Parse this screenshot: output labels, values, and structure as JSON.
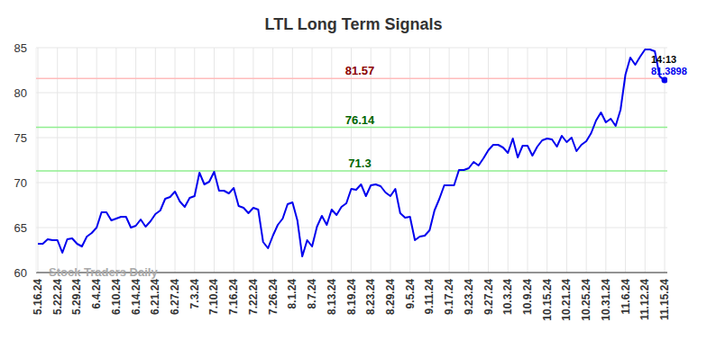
{
  "chart_data": {
    "type": "line",
    "title": "LTL Long Term Signals",
    "watermark": "Stock Traders Daily",
    "categories": [
      "5.16.24",
      null,
      null,
      null,
      "5.22.24",
      null,
      null,
      null,
      "5.29.24",
      null,
      null,
      null,
      "6.4.24",
      null,
      null,
      null,
      "6.10.24",
      null,
      null,
      null,
      "6.14.24",
      null,
      null,
      null,
      "6.21.24",
      null,
      null,
      null,
      "6.27.24",
      null,
      null,
      null,
      "7.3.24",
      null,
      null,
      null,
      "7.10.24",
      null,
      null,
      null,
      "7.16.24",
      null,
      null,
      null,
      "7.22.24",
      null,
      null,
      null,
      "7.26.24",
      null,
      null,
      null,
      "8.1.24",
      null,
      null,
      null,
      "8.7.24",
      null,
      null,
      null,
      "8.13.24",
      null,
      null,
      null,
      "8.19.24",
      null,
      null,
      null,
      "8.23.24",
      null,
      null,
      null,
      "8.29.24",
      null,
      null,
      null,
      "9.5.24",
      null,
      null,
      null,
      "9.11.24",
      null,
      null,
      null,
      "9.17.24",
      null,
      null,
      null,
      "9.23.24",
      null,
      null,
      null,
      "9.27.24",
      null,
      null,
      null,
      "10.3.24",
      null,
      null,
      null,
      "10.9.24",
      null,
      null,
      null,
      "10.15.24",
      null,
      null,
      null,
      "10.21.24",
      null,
      null,
      null,
      "10.25.24",
      null,
      null,
      null,
      "10.31.24",
      null,
      null,
      null,
      "11.6.24",
      null,
      null,
      null,
      "11.12.24",
      null,
      null,
      null,
      "11.15.24"
    ],
    "series": [
      {
        "name": "LTL",
        "color": "#0000ee",
        "values": [
          63.2,
          63.2,
          63.7,
          63.6,
          63.6,
          62.2,
          63.7,
          63.8,
          63.2,
          62.9,
          64.0,
          64.4,
          65.0,
          66.7,
          66.7,
          65.8,
          66.0,
          66.2,
          66.2,
          65.0,
          65.2,
          65.9,
          65.1,
          65.7,
          66.5,
          66.9,
          68.2,
          68.4,
          69.0,
          67.9,
          67.3,
          68.3,
          68.5,
          71.1,
          69.8,
          70.1,
          71.2,
          69.1,
          69.1,
          68.8,
          69.4,
          67.4,
          67.2,
          66.6,
          67.2,
          67.0,
          63.4,
          62.7,
          64.1,
          65.3,
          66.0,
          67.6,
          67.8,
          65.8,
          61.8,
          63.6,
          62.9,
          65.1,
          66.3,
          65.3,
          67.0,
          66.4,
          67.3,
          67.7,
          69.3,
          69.2,
          69.8,
          68.5,
          69.7,
          69.8,
          69.6,
          68.9,
          68.5,
          69.3,
          66.6,
          66.1,
          66.2,
          63.6,
          64.0,
          64.1,
          64.7,
          66.9,
          68.2,
          69.7,
          69.7,
          69.7,
          71.4,
          71.4,
          71.6,
          72.3,
          71.9,
          72.7,
          73.6,
          74.2,
          74.2,
          73.9,
          73.3,
          74.9,
          72.8,
          74.1,
          74.1,
          73.0,
          74.0,
          74.7,
          74.9,
          74.8,
          74.0,
          75.2,
          74.5,
          75.0,
          73.5,
          74.2,
          74.6,
          75.5,
          76.9,
          77.8,
          76.7,
          77.1,
          76.3,
          78.1,
          82.0,
          83.9,
          83.1,
          84.0,
          84.8,
          84.8,
          84.6,
          81.8,
          81.3898
        ]
      }
    ],
    "reference_lines": [
      {
        "value": 81.57,
        "color": "#ffbbbb",
        "label_color": "#8b0000"
      },
      {
        "value": 76.14,
        "color": "#90ee90",
        "label_color": "#006400"
      },
      {
        "value": 71.3,
        "color": "#90ee90",
        "label_color": "#006400"
      }
    ],
    "annotations": [
      {
        "text": "14:13",
        "color": "#000000"
      },
      {
        "text": "81.3898",
        "color": "#0000ee"
      }
    ],
    "ylim": [
      60,
      85
    ],
    "yticks": [
      60,
      65,
      70,
      75,
      80,
      85
    ],
    "grid": true
  }
}
